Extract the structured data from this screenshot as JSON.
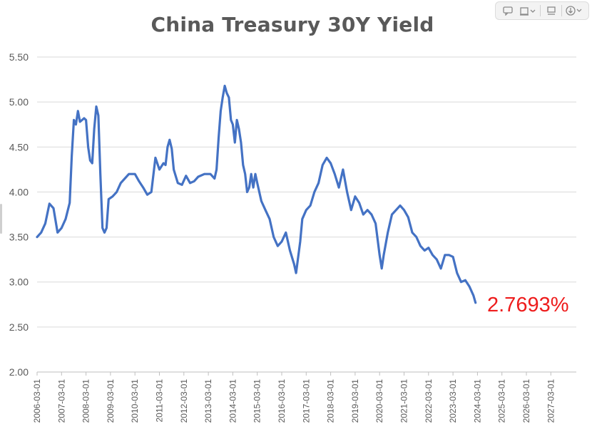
{
  "toolbar": {
    "buttons": [
      {
        "icon": "comment-icon"
      },
      {
        "icon": "frame-icon"
      },
      {
        "icon": "chevron-down-icon"
      },
      {
        "icon": "note-icon"
      },
      {
        "icon": "download-icon"
      },
      {
        "icon": "chevron-down-icon"
      }
    ]
  },
  "chart_data": {
    "type": "line",
    "title": "China Treasury 30Y Yield",
    "xlabel": "",
    "ylabel": "",
    "ylim": [
      2.0,
      5.5
    ],
    "yticks": [
      "2.00",
      "2.50",
      "3.00",
      "3.50",
      "4.00",
      "4.50",
      "5.00",
      "5.50"
    ],
    "xticks": [
      "2006-03-01",
      "2007-03-01",
      "2008-03-01",
      "2009-03-01",
      "2010-03-01",
      "2011-03-01",
      "2012-03-01",
      "2013-03-01",
      "2014-03-01",
      "2015-03-01",
      "2016-03-01",
      "2017-03-01",
      "2018-03-01",
      "2019-03-01",
      "2020-03-01",
      "2021-03-01",
      "2022-03-01",
      "2023-03-01",
      "2024-03-01",
      "2025-03-01",
      "2026-03-01",
      "2027-03-01"
    ],
    "grid": true,
    "legend": "none",
    "line_color": "#4472c4",
    "last_value_label": "2.7693%",
    "last_value_color": "#ee1c1c",
    "series": [
      {
        "values": [
          [
            "2006-03-01",
            3.5
          ],
          [
            "2006-05-01",
            3.55
          ],
          [
            "2006-07-01",
            3.65
          ],
          [
            "2006-09-01",
            3.87
          ],
          [
            "2006-11-01",
            3.82
          ],
          [
            "2007-01-01",
            3.55
          ],
          [
            "2007-03-01",
            3.6
          ],
          [
            "2007-05-01",
            3.7
          ],
          [
            "2007-07-01",
            3.88
          ],
          [
            "2007-08-01",
            4.4
          ],
          [
            "2007-09-01",
            4.8
          ],
          [
            "2007-10-01",
            4.75
          ],
          [
            "2007-11-01",
            4.9
          ],
          [
            "2007-12-01",
            4.78
          ],
          [
            "2008-02-01",
            4.82
          ],
          [
            "2008-03-01",
            4.8
          ],
          [
            "2008-04-01",
            4.5
          ],
          [
            "2008-05-01",
            4.35
          ],
          [
            "2008-06-01",
            4.32
          ],
          [
            "2008-07-01",
            4.7
          ],
          [
            "2008-08-01",
            4.95
          ],
          [
            "2008-09-01",
            4.85
          ],
          [
            "2008-10-01",
            4.2
          ],
          [
            "2008-11-01",
            3.6
          ],
          [
            "2008-12-01",
            3.55
          ],
          [
            "2009-01-01",
            3.6
          ],
          [
            "2009-02-01",
            3.92
          ],
          [
            "2009-04-01",
            3.95
          ],
          [
            "2009-06-01",
            4.0
          ],
          [
            "2009-08-01",
            4.1
          ],
          [
            "2009-10-01",
            4.15
          ],
          [
            "2009-12-01",
            4.2
          ],
          [
            "2010-03-01",
            4.2
          ],
          [
            "2010-05-01",
            4.12
          ],
          [
            "2010-07-01",
            4.05
          ],
          [
            "2010-09-01",
            3.97
          ],
          [
            "2010-11-01",
            4.0
          ],
          [
            "2011-01-01",
            4.38
          ],
          [
            "2011-03-01",
            4.25
          ],
          [
            "2011-05-01",
            4.32
          ],
          [
            "2011-06-01",
            4.3
          ],
          [
            "2011-07-01",
            4.5
          ],
          [
            "2011-08-01",
            4.58
          ],
          [
            "2011-09-01",
            4.48
          ],
          [
            "2011-10-01",
            4.25
          ],
          [
            "2011-12-01",
            4.1
          ],
          [
            "2012-02-01",
            4.08
          ],
          [
            "2012-04-01",
            4.18
          ],
          [
            "2012-06-01",
            4.1
          ],
          [
            "2012-08-01",
            4.12
          ],
          [
            "2012-10-01",
            4.17
          ],
          [
            "2013-01-01",
            4.2
          ],
          [
            "2013-04-01",
            4.2
          ],
          [
            "2013-06-01",
            4.15
          ],
          [
            "2013-07-01",
            4.25
          ],
          [
            "2013-08-01",
            4.6
          ],
          [
            "2013-09-01",
            4.9
          ],
          [
            "2013-10-01",
            5.05
          ],
          [
            "2013-11-01",
            5.18
          ],
          [
            "2013-12-01",
            5.1
          ],
          [
            "2014-01-01",
            5.05
          ],
          [
            "2014-02-01",
            4.8
          ],
          [
            "2014-03-01",
            4.75
          ],
          [
            "2014-04-01",
            4.55
          ],
          [
            "2014-05-01",
            4.8
          ],
          [
            "2014-06-01",
            4.7
          ],
          [
            "2014-07-01",
            4.55
          ],
          [
            "2014-08-01",
            4.3
          ],
          [
            "2014-09-01",
            4.2
          ],
          [
            "2014-10-01",
            4.0
          ],
          [
            "2014-11-01",
            4.05
          ],
          [
            "2014-12-01",
            4.2
          ],
          [
            "2015-01-01",
            4.05
          ],
          [
            "2015-02-01",
            4.2
          ],
          [
            "2015-03-01",
            4.1
          ],
          [
            "2015-05-01",
            3.9
          ],
          [
            "2015-07-01",
            3.8
          ],
          [
            "2015-09-01",
            3.7
          ],
          [
            "2015-11-01",
            3.5
          ],
          [
            "2016-01-01",
            3.4
          ],
          [
            "2016-03-01",
            3.45
          ],
          [
            "2016-05-01",
            3.55
          ],
          [
            "2016-07-01",
            3.35
          ],
          [
            "2016-09-01",
            3.2
          ],
          [
            "2016-10-01",
            3.1
          ],
          [
            "2016-12-01",
            3.45
          ],
          [
            "2017-01-01",
            3.7
          ],
          [
            "2017-03-01",
            3.8
          ],
          [
            "2017-05-01",
            3.85
          ],
          [
            "2017-07-01",
            4.0
          ],
          [
            "2017-09-01",
            4.1
          ],
          [
            "2017-11-01",
            4.3
          ],
          [
            "2018-01-01",
            4.38
          ],
          [
            "2018-03-01",
            4.32
          ],
          [
            "2018-05-01",
            4.2
          ],
          [
            "2018-07-01",
            4.05
          ],
          [
            "2018-09-01",
            4.25
          ],
          [
            "2018-11-01",
            4.0
          ],
          [
            "2019-01-01",
            3.8
          ],
          [
            "2019-03-01",
            3.95
          ],
          [
            "2019-05-01",
            3.88
          ],
          [
            "2019-07-01",
            3.75
          ],
          [
            "2019-09-01",
            3.8
          ],
          [
            "2019-11-01",
            3.75
          ],
          [
            "2020-01-01",
            3.65
          ],
          [
            "2020-03-01",
            3.3
          ],
          [
            "2020-04-01",
            3.15
          ],
          [
            "2020-05-01",
            3.3
          ],
          [
            "2020-07-01",
            3.55
          ],
          [
            "2020-09-01",
            3.75
          ],
          [
            "2020-11-01",
            3.8
          ],
          [
            "2021-01-01",
            3.85
          ],
          [
            "2021-03-01",
            3.8
          ],
          [
            "2021-05-01",
            3.72
          ],
          [
            "2021-07-01",
            3.55
          ],
          [
            "2021-09-01",
            3.5
          ],
          [
            "2021-11-01",
            3.4
          ],
          [
            "2022-01-01",
            3.35
          ],
          [
            "2022-03-01",
            3.38
          ],
          [
            "2022-05-01",
            3.3
          ],
          [
            "2022-07-01",
            3.25
          ],
          [
            "2022-09-01",
            3.15
          ],
          [
            "2022-11-01",
            3.3
          ],
          [
            "2023-01-01",
            3.3
          ],
          [
            "2023-03-01",
            3.28
          ],
          [
            "2023-05-01",
            3.1
          ],
          [
            "2023-07-01",
            3.0
          ],
          [
            "2023-09-01",
            3.02
          ],
          [
            "2023-11-01",
            2.95
          ],
          [
            "2024-01-01",
            2.85
          ],
          [
            "2024-02-01",
            2.7693
          ]
        ]
      }
    ]
  }
}
